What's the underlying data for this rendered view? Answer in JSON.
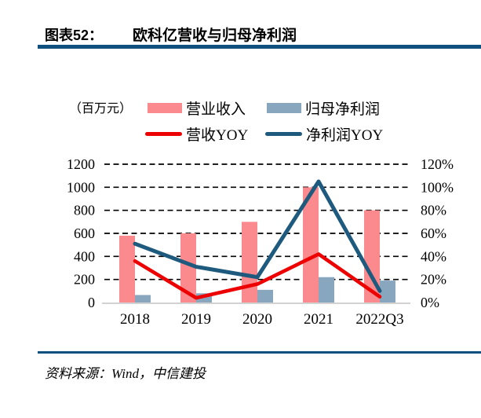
{
  "header": {
    "label": "图表52：",
    "title": "欧科亿营收与归母净利润"
  },
  "footer": {
    "source": "资料来源：Wind，中信建投"
  },
  "colors": {
    "rule": "#10507E",
    "axis_line": "#D2D2D2",
    "grid": "#000000",
    "revenue_bar": "#FA8A8E",
    "net_profit_bar": "#88A7BF",
    "revenue_yoy_line": "#EC0000",
    "net_profit_yoy_line": "#1E5A7D"
  },
  "chart_data": {
    "type": "bar",
    "subtype": "combo-bar-line-dual-axis",
    "unit_label": "（百万元）",
    "categories": [
      "2018",
      "2019",
      "2020",
      "2021",
      "2022Q3"
    ],
    "series": [
      {
        "key": "revenue",
        "name": "营业收入",
        "kind": "bar",
        "axis": "left",
        "color": "#FA8A8E",
        "values": [
          580,
          600,
          700,
          1000,
          800
        ]
      },
      {
        "key": "net-profit",
        "name": "归母净利润",
        "kind": "bar",
        "axis": "left",
        "color": "#88A7BF",
        "values": [
          65,
          80,
          110,
          220,
          190
        ]
      },
      {
        "key": "revenue-yoy",
        "name": "营收YOY",
        "kind": "line",
        "axis": "right",
        "color": "#EC0000",
        "values": [
          36,
          4,
          16,
          42,
          5
        ],
        "unit": "%"
      },
      {
        "key": "net-profit-yoy",
        "name": "净利润YOY",
        "kind": "line",
        "axis": "right",
        "color": "#1E5A7D",
        "values": [
          51,
          31,
          22,
          105,
          10
        ],
        "unit": "%"
      }
    ],
    "left_axis": {
      "min": 0,
      "max": 1200,
      "step": 200,
      "ticks": [
        "1200",
        "1000",
        "800",
        "600",
        "400",
        "200",
        "0"
      ]
    },
    "right_axis": {
      "min": 0,
      "max": 120,
      "step": 20,
      "ticks": [
        "120%",
        "100%",
        "80%",
        "60%",
        "40%",
        "20%",
        "0%"
      ]
    },
    "grid": "horizontal dashed",
    "legend_position": "top"
  }
}
